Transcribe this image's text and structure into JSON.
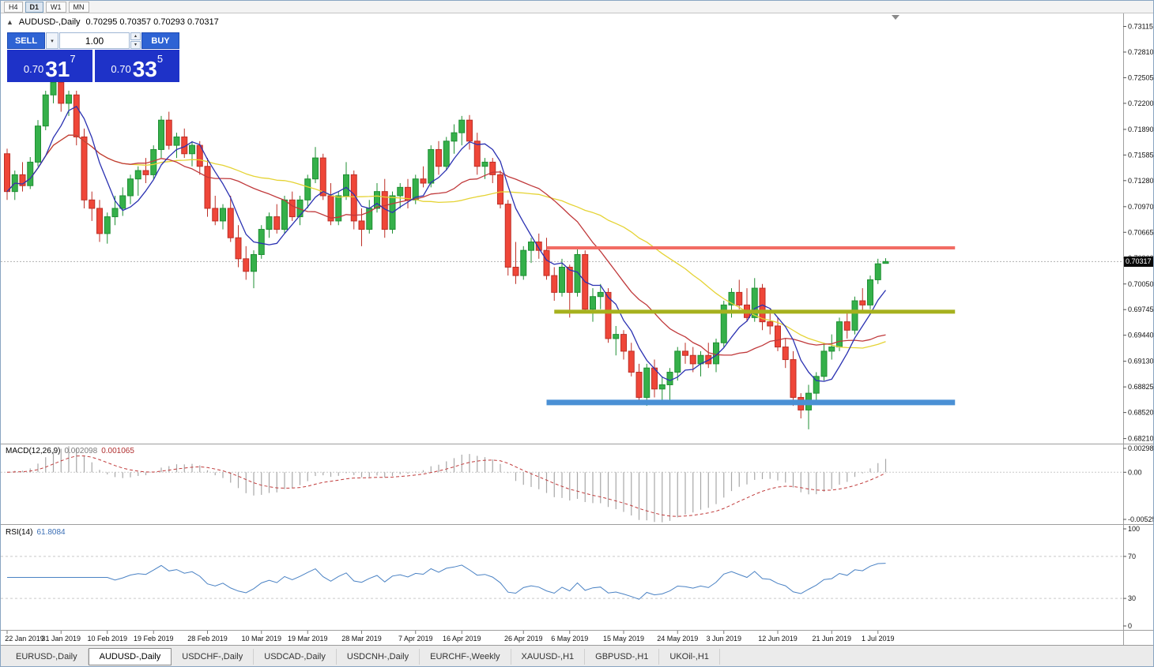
{
  "toolbar": {
    "timeframes": [
      "H4",
      "D1",
      "W1",
      "MN"
    ],
    "active": "D1"
  },
  "chart_title": {
    "symbol": "AUDUSD-,Daily",
    "ohlc": "0.70295 0.70357 0.70293 0.70317"
  },
  "trade_panel": {
    "sell_label": "SELL",
    "buy_label": "BUY",
    "volume": "1.00",
    "sell_price_prefix": "0.70",
    "sell_price_big": "31",
    "sell_price_sup": "7",
    "buy_price_prefix": "0.70",
    "buy_price_big": "33",
    "buy_price_sup": "5"
  },
  "price_box": "0.70317",
  "tabs": {
    "items": [
      "EURUSD-,Daily",
      "AUDUSD-,Daily",
      "USDCHF-,Daily",
      "USDCAD-,Daily",
      "USDCNH-,Daily",
      "EURCHF-,Weekly",
      "XAUUSD-,H1",
      "GBPUSD-,H1",
      "UKOil-,H1"
    ],
    "active": "AUDUSD-,Daily"
  },
  "chart_data": {
    "type": "candlestick",
    "symbol": "AUDUSD-,Daily",
    "timeframe": "D1",
    "current": {
      "open": 0.70295,
      "high": 0.70357,
      "low": 0.70293,
      "close": 0.70317
    },
    "current_price": 0.70317,
    "ylim": {
      "top": 0.7327,
      "bottom": 0.6815
    },
    "y_axis_labels": [
      "0.73115",
      "0.72810",
      "0.72505",
      "0.72200",
      "0.71890",
      "0.71585",
      "0.71280",
      "0.70970",
      "0.70665",
      "0.70360",
      "0.70050",
      "0.69745",
      "0.69440",
      "0.69130",
      "0.68825",
      "0.68520",
      "0.68210"
    ],
    "x_axis_labels": [
      {
        "text": "22 Jan 2019",
        "i": 0
      },
      {
        "text": "31 Jan 2019",
        "i": 7
      },
      {
        "text": "10 Feb 2019",
        "i": 13
      },
      {
        "text": "19 Feb 2019",
        "i": 19
      },
      {
        "text": "28 Feb 2019",
        "i": 26
      },
      {
        "text": "10 Mar 2019",
        "i": 33
      },
      {
        "text": "19 Mar 2019",
        "i": 39
      },
      {
        "text": "28 Mar 2019",
        "i": 46
      },
      {
        "text": "7 Apr 2019",
        "i": 53
      },
      {
        "text": "16 Apr 2019",
        "i": 59
      },
      {
        "text": "26 Apr 2019",
        "i": 67
      },
      {
        "text": "6 May 2019",
        "i": 73
      },
      {
        "text": "15 May 2019",
        "i": 80
      },
      {
        "text": "24 May 2019",
        "i": 87
      },
      {
        "text": "3 Jun 2019",
        "i": 93
      },
      {
        "text": "12 Jun 2019",
        "i": 100
      },
      {
        "text": "21 Jun 2019",
        "i": 107
      },
      {
        "text": "1 Jul 2019",
        "i": 113
      }
    ],
    "candles": [
      [
        0.716,
        0.7166,
        0.7105,
        0.7115
      ],
      [
        0.7115,
        0.714,
        0.7105,
        0.7135
      ],
      [
        0.7135,
        0.715,
        0.7115,
        0.7122
      ],
      [
        0.7122,
        0.7156,
        0.7118,
        0.715
      ],
      [
        0.715,
        0.72,
        0.7145,
        0.7193
      ],
      [
        0.7193,
        0.7235,
        0.7188,
        0.723
      ],
      [
        0.723,
        0.727,
        0.722,
        0.7245
      ],
      [
        0.7245,
        0.725,
        0.721,
        0.722
      ],
      [
        0.722,
        0.7235,
        0.7205,
        0.723
      ],
      [
        0.723,
        0.7235,
        0.717,
        0.718
      ],
      [
        0.718,
        0.719,
        0.7095,
        0.7105
      ],
      [
        0.7105,
        0.7115,
        0.708,
        0.7095
      ],
      [
        0.7095,
        0.7105,
        0.7055,
        0.7065
      ],
      [
        0.7065,
        0.709,
        0.7053,
        0.7085
      ],
      [
        0.7085,
        0.711,
        0.7075,
        0.7095
      ],
      [
        0.7095,
        0.712,
        0.7086,
        0.711
      ],
      [
        0.711,
        0.7135,
        0.71,
        0.713
      ],
      [
        0.713,
        0.7145,
        0.711,
        0.714
      ],
      [
        0.714,
        0.7155,
        0.7125,
        0.7135
      ],
      [
        0.7135,
        0.717,
        0.713,
        0.7165
      ],
      [
        0.7165,
        0.7205,
        0.7155,
        0.72
      ],
      [
        0.72,
        0.721,
        0.7165,
        0.717
      ],
      [
        0.717,
        0.7185,
        0.7155,
        0.718
      ],
      [
        0.718,
        0.719,
        0.7155,
        0.716
      ],
      [
        0.716,
        0.7175,
        0.7145,
        0.717
      ],
      [
        0.717,
        0.7175,
        0.7135,
        0.7145
      ],
      [
        0.7145,
        0.7155,
        0.7085,
        0.7095
      ],
      [
        0.7095,
        0.711,
        0.7075,
        0.708
      ],
      [
        0.708,
        0.71,
        0.707,
        0.7095
      ],
      [
        0.7095,
        0.711,
        0.7055,
        0.706
      ],
      [
        0.706,
        0.7075,
        0.7025,
        0.7035
      ],
      [
        0.7035,
        0.705,
        0.701,
        0.702
      ],
      [
        0.702,
        0.7045,
        0.7,
        0.704
      ],
      [
        0.704,
        0.7075,
        0.7035,
        0.707
      ],
      [
        0.707,
        0.709,
        0.706,
        0.7085
      ],
      [
        0.7085,
        0.71,
        0.7065,
        0.707
      ],
      [
        0.707,
        0.711,
        0.7065,
        0.7105
      ],
      [
        0.7105,
        0.7115,
        0.708,
        0.7085
      ],
      [
        0.7085,
        0.711,
        0.7075,
        0.7105
      ],
      [
        0.7105,
        0.7135,
        0.7095,
        0.713
      ],
      [
        0.713,
        0.7168,
        0.7125,
        0.7155
      ],
      [
        0.7155,
        0.716,
        0.7105,
        0.711
      ],
      [
        0.711,
        0.7125,
        0.7075,
        0.708
      ],
      [
        0.708,
        0.7115,
        0.7075,
        0.711
      ],
      [
        0.711,
        0.715,
        0.7105,
        0.7135
      ],
      [
        0.7135,
        0.714,
        0.707,
        0.708
      ],
      [
        0.708,
        0.7095,
        0.705,
        0.707
      ],
      [
        0.707,
        0.7105,
        0.7065,
        0.7095
      ],
      [
        0.7095,
        0.7125,
        0.709,
        0.7115
      ],
      [
        0.7115,
        0.713,
        0.706,
        0.707
      ],
      [
        0.707,
        0.7115,
        0.7065,
        0.711
      ],
      [
        0.711,
        0.7125,
        0.7095,
        0.712
      ],
      [
        0.712,
        0.713,
        0.7095,
        0.7105
      ],
      [
        0.7105,
        0.7135,
        0.71,
        0.713
      ],
      [
        0.713,
        0.7145,
        0.712,
        0.7125
      ],
      [
        0.7125,
        0.717,
        0.712,
        0.7165
      ],
      [
        0.7165,
        0.7175,
        0.7135,
        0.7145
      ],
      [
        0.7145,
        0.718,
        0.714,
        0.7175
      ],
      [
        0.7175,
        0.7195,
        0.716,
        0.7185
      ],
      [
        0.7185,
        0.7205,
        0.717,
        0.72
      ],
      [
        0.72,
        0.7206,
        0.7165,
        0.7175
      ],
      [
        0.7175,
        0.7185,
        0.7135,
        0.7145
      ],
      [
        0.7145,
        0.7155,
        0.713,
        0.715
      ],
      [
        0.715,
        0.7155,
        0.7125,
        0.7135
      ],
      [
        0.7135,
        0.714,
        0.7095,
        0.71
      ],
      [
        0.71,
        0.7105,
        0.7015,
        0.7025
      ],
      [
        0.7025,
        0.7055,
        0.7005,
        0.7015
      ],
      [
        0.7015,
        0.705,
        0.701,
        0.7045
      ],
      [
        0.7045,
        0.706,
        0.703,
        0.7055
      ],
      [
        0.7055,
        0.7065,
        0.7035,
        0.7045
      ],
      [
        0.7045,
        0.706,
        0.701,
        0.7015
      ],
      [
        0.7015,
        0.7025,
        0.6985,
        0.6995
      ],
      [
        0.6995,
        0.7035,
        0.699,
        0.7025
      ],
      [
        0.7025,
        0.7028,
        0.6965,
        0.6995
      ],
      [
        0.6995,
        0.7048,
        0.699,
        0.704
      ],
      [
        0.704,
        0.7045,
        0.697,
        0.6975
      ],
      [
        0.6975,
        0.7,
        0.696,
        0.699
      ],
      [
        0.699,
        0.7005,
        0.6975,
        0.6995
      ],
      [
        0.6995,
        0.7,
        0.6935,
        0.694
      ],
      [
        0.694,
        0.6955,
        0.692,
        0.6945
      ],
      [
        0.6945,
        0.695,
        0.6915,
        0.6925
      ],
      [
        0.6925,
        0.6935,
        0.6895,
        0.69
      ],
      [
        0.69,
        0.691,
        0.6865,
        0.687
      ],
      [
        0.687,
        0.691,
        0.686,
        0.6905
      ],
      [
        0.6905,
        0.6915,
        0.687,
        0.688
      ],
      [
        0.688,
        0.6895,
        0.6865,
        0.6885
      ],
      [
        0.6885,
        0.6905,
        0.6864,
        0.69
      ],
      [
        0.69,
        0.693,
        0.689,
        0.6925
      ],
      [
        0.6925,
        0.6935,
        0.691,
        0.692
      ],
      [
        0.692,
        0.693,
        0.69,
        0.691
      ],
      [
        0.691,
        0.6925,
        0.6895,
        0.692
      ],
      [
        0.692,
        0.6935,
        0.6905,
        0.691
      ],
      [
        0.691,
        0.694,
        0.69,
        0.6935
      ],
      [
        0.6935,
        0.6985,
        0.693,
        0.698
      ],
      [
        0.698,
        0.7,
        0.6965,
        0.6995
      ],
      [
        0.6995,
        0.701,
        0.6975,
        0.698
      ],
      [
        0.698,
        0.7,
        0.696,
        0.6965
      ],
      [
        0.6965,
        0.7012,
        0.696,
        0.7
      ],
      [
        0.7,
        0.7005,
        0.695,
        0.696
      ],
      [
        0.696,
        0.6975,
        0.6945,
        0.6955
      ],
      [
        0.6955,
        0.6965,
        0.6925,
        0.693
      ],
      [
        0.693,
        0.694,
        0.6905,
        0.6915
      ],
      [
        0.6915,
        0.6925,
        0.686,
        0.687
      ],
      [
        0.687,
        0.6875,
        0.6845,
        0.6855
      ],
      [
        0.6855,
        0.6885,
        0.6832,
        0.6875
      ],
      [
        0.6875,
        0.69,
        0.6865,
        0.6895
      ],
      [
        0.6895,
        0.6935,
        0.689,
        0.6925
      ],
      [
        0.6925,
        0.6945,
        0.6915,
        0.693
      ],
      [
        0.693,
        0.6965,
        0.6925,
        0.696
      ],
      [
        0.696,
        0.697,
        0.694,
        0.695
      ],
      [
        0.695,
        0.699,
        0.6945,
        0.6985
      ],
      [
        0.6985,
        0.7,
        0.697,
        0.698
      ],
      [
        0.698,
        0.7015,
        0.6975,
        0.701
      ],
      [
        0.701,
        0.7035,
        0.7005,
        0.7029
      ],
      [
        0.70295,
        0.70357,
        0.70293,
        0.70317
      ]
    ],
    "candle_colors": {
      "up_fill": "#35b04a",
      "up_stroke": "#1f8f33",
      "down_fill": "#ef4638",
      "down_stroke": "#bd2f26"
    },
    "moving_averages": [
      {
        "period": 6,
        "color": "#2b32b2"
      },
      {
        "period": 17,
        "color": "#c0393b"
      },
      {
        "period": 34,
        "color": "#e5d334"
      }
    ],
    "hlines": [
      {
        "name": "resistance-line",
        "price": 0.7048,
        "color": "#f26c64",
        "width": 4,
        "from_i": 70,
        "to_i": 123
      },
      {
        "name": "mid-support-line",
        "price": 0.6972,
        "color": "#a6b11e",
        "width": 5,
        "from_i": 71,
        "to_i": 123
      },
      {
        "name": "support-line",
        "price": 0.6864,
        "color": "#4a90d5",
        "width": 7,
        "from_i": 70,
        "to_i": 123
      }
    ],
    "indicators": {
      "macd": {
        "name": "MACD(12,26,9)",
        "fast": 12,
        "slow": 26,
        "signal": 9,
        "value_main": "0.002098",
        "value_signal": "0.001065",
        "scale_labels": [
          "0.002984",
          "0.00",
          "-0.005256"
        ],
        "histogram_color": "#a8a8a8",
        "signal_color": "#c03a3a"
      },
      "rsi": {
        "name": "RSI(14)",
        "period": 14,
        "value": "61.8084",
        "scale_labels": [
          "100",
          "70",
          "30",
          "0"
        ],
        "levels": [
          70,
          30
        ],
        "line_color": "#4a82c4"
      }
    }
  }
}
